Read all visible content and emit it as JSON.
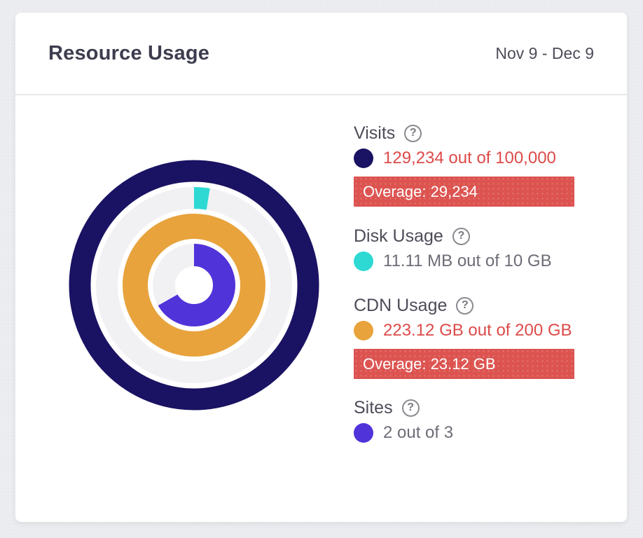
{
  "card": {
    "title": "Resource Usage",
    "date_range": "Nov 9 - Dec 9"
  },
  "legend": {
    "help_glyph": "?",
    "sections": [
      {
        "label": "Visits",
        "value": "129,234 out of 100,000",
        "value_state": "over",
        "dot_color": "#1a1262",
        "overage_label": "Overage: 29,234"
      },
      {
        "label": "Disk Usage",
        "value": "11.11 MB out of 10 GB",
        "value_state": "normal",
        "dot_color": "#2ed9d4"
      },
      {
        "label": "CDN Usage",
        "value": "223.12 GB out of 200 GB",
        "value_state": "over",
        "dot_color": "#e8a33c",
        "overage_label": "Overage: 23.12 GB"
      },
      {
        "label": "Sites",
        "value": "2 out of 3",
        "value_state": "normal",
        "dot_color": "#5133da"
      }
    ]
  },
  "chart_data": {
    "type": "donut-multi-ring",
    "title": "Resource Usage",
    "period": "Nov 9 - Dec 9",
    "track_color": "#f1f1f4",
    "rings": [
      {
        "name": "Visits",
        "used": 129234,
        "limit": 100000,
        "unit": "visits",
        "percent": 129.23,
        "color": "#1a1262",
        "overage": "29,234"
      },
      {
        "name": "Disk Usage",
        "used": "11.11 MB",
        "limit": "10 GB",
        "unit": "bytes",
        "percent": 0.11,
        "color": "#2ed9d4"
      },
      {
        "name": "CDN Usage",
        "used": "223.12 GB",
        "limit": "200 GB",
        "unit": "bytes",
        "percent": 111.56,
        "color": "#e8a33c",
        "overage": "23.12 GB"
      },
      {
        "name": "Sites",
        "used": 2,
        "limit": 3,
        "unit": "sites",
        "percent": 66.67,
        "color": "#5133da"
      }
    ],
    "legend_position": "right",
    "start_angle_deg": 0,
    "direction": "clockwise"
  },
  "colors": {
    "over_text": "#dc4b49",
    "overage_banner": "#dc5350",
    "track": "#f1f1f4",
    "label": "#4d4d59",
    "value": "#6c6c77",
    "title": "#3d3d4f"
  }
}
